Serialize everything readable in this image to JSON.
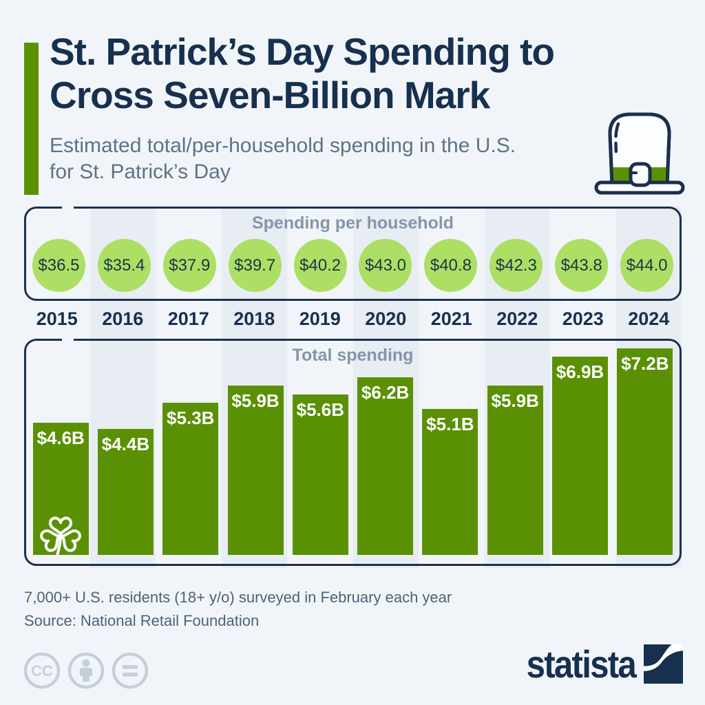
{
  "title": "St. Patrick’s Day Spending to\nCross Seven-Billion Mark",
  "subtitle": "Estimated total/per-household spending in the U.S.\nfor St. Patrick’s Day",
  "panels": {
    "household_title": "Spending per household",
    "total_title": "Total spending"
  },
  "chart_data": {
    "type": "bar",
    "categories": [
      "2015",
      "2016",
      "2017",
      "2018",
      "2019",
      "2020",
      "2021",
      "2022",
      "2023",
      "2024"
    ],
    "series": [
      {
        "name": "Spending per household",
        "unit": "USD per household",
        "values": [
          36.5,
          35.4,
          37.9,
          39.7,
          40.2,
          43.0,
          40.8,
          42.3,
          43.8,
          44.0
        ],
        "labels": [
          "$36.5",
          "$35.4",
          "$37.9",
          "$39.7",
          "$40.2",
          "$43.0",
          "$40.8",
          "$42.3",
          "$43.8",
          "$44.0"
        ],
        "style": "circle-badges"
      },
      {
        "name": "Total spending",
        "unit": "USD billions",
        "values": [
          4.6,
          4.4,
          5.3,
          5.9,
          5.6,
          6.2,
          5.1,
          5.9,
          6.9,
          7.2
        ],
        "labels": [
          "$4.6B",
          "$4.4B",
          "$5.3B",
          "$5.9B",
          "$5.6B",
          "$6.2B",
          "$5.1B",
          "$5.9B",
          "$6.9B",
          "$7.2B"
        ],
        "style": "bars"
      }
    ],
    "ylim": [
      0,
      7.2
    ],
    "grid": false,
    "legend_position": "panel-headings"
  },
  "footer": {
    "note": "7,000+ U.S. residents (18+ y/o) surveyed in February each year",
    "source": "Source: National Retail Foundation"
  },
  "branding": {
    "logo_text": "statista"
  },
  "colors": {
    "background": "#f1f5f9",
    "stripe": "#e8ecf3",
    "navy": "#17304d",
    "bar_green": "#5a9104",
    "circle_green": "#acdf63",
    "heading_gray": "#8496a9",
    "footer_gray": "#4d6278",
    "cc_gray": "#c5cfda"
  }
}
